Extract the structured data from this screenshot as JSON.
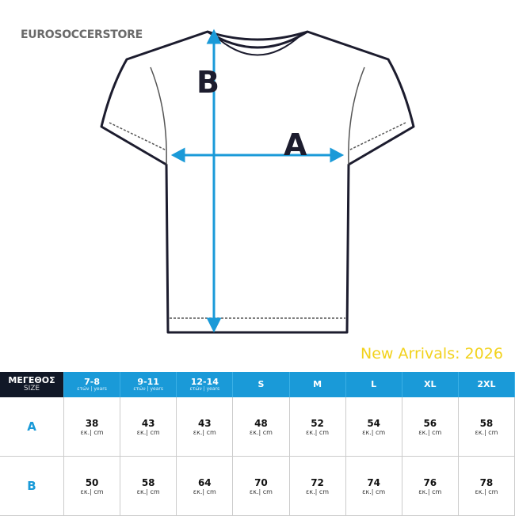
{
  "logo": "EUROSOCCERSTORE",
  "diagram": {
    "label_a": "A",
    "label_b": "B",
    "arrow_color": "#1a9ad8"
  },
  "table": {
    "header": {
      "title": "ΜΕΓΕΘΟΣ",
      "subtitle": "SIZE"
    },
    "columns": [
      {
        "label": "7-8",
        "sub": "ετών | years"
      },
      {
        "label": "9-11",
        "sub": "ετών | years"
      },
      {
        "label": "12-14",
        "sub": "ετών | years"
      },
      {
        "label": "S",
        "sub": ""
      },
      {
        "label": "M",
        "sub": ""
      },
      {
        "label": "L",
        "sub": ""
      },
      {
        "label": "XL",
        "sub": ""
      },
      {
        "label": "2XL",
        "sub": ""
      }
    ],
    "unit": "εκ.| cm",
    "rows": [
      {
        "label": "A",
        "values": [
          "38",
          "43",
          "43",
          "48",
          "52",
          "54",
          "56",
          "58"
        ]
      },
      {
        "label": "B",
        "values": [
          "50",
          "58",
          "64",
          "70",
          "72",
          "74",
          "76",
          "78"
        ]
      }
    ]
  },
  "watermark": "New Arrivals: 2026"
}
